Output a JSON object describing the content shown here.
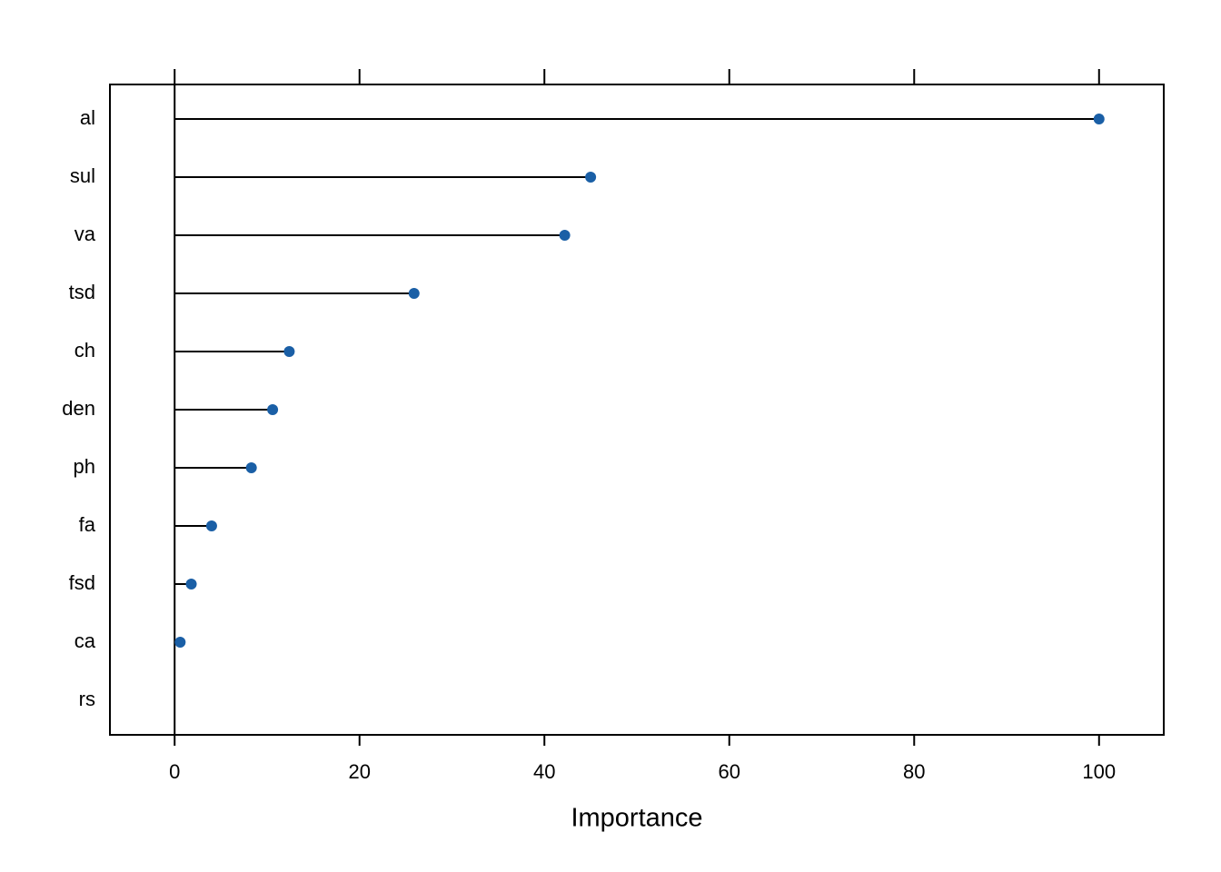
{
  "chart_data": {
    "type": "lollipop",
    "xlabel": "Importance",
    "categories": [
      "al",
      "sul",
      "va",
      "tsd",
      "ch",
      "den",
      "ph",
      "fa",
      "fsd",
      "ca",
      "rs"
    ],
    "values": [
      100,
      45.0,
      42.2,
      25.9,
      12.4,
      10.6,
      8.3,
      4.0,
      1.8,
      0.6,
      null
    ],
    "color": "#1a5fa6",
    "xlim": [
      -7,
      107
    ],
    "xticks": [
      0,
      20,
      40,
      60,
      80,
      100
    ]
  }
}
